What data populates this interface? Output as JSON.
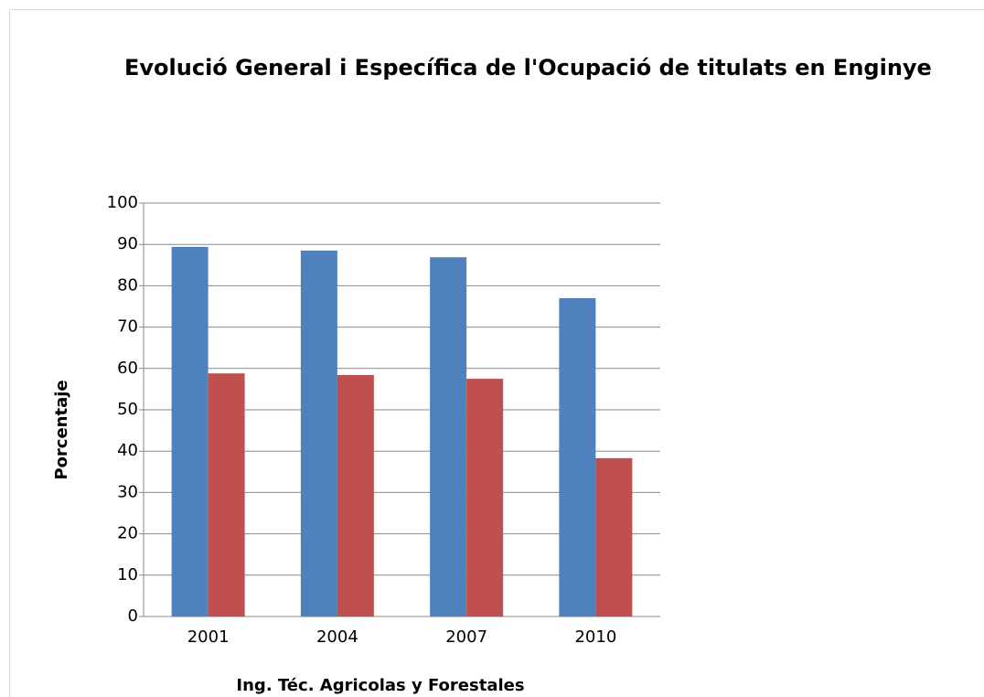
{
  "chart_data": {
    "type": "bar",
    "title": "Evolució General i Específica de l'Ocupació de titulats en Enginye",
    "x_label": "Ing. Téc. Agricolas y Forestales",
    "y_label": "Porcentaje",
    "categories": [
      "2001",
      "2004",
      "2007",
      "2010"
    ],
    "series": [
      {
        "color": "#4f81bd",
        "values": [
          89.4,
          88.5,
          86.9,
          77.0
        ]
      },
      {
        "color": "#c0504d",
        "values": [
          58.8,
          58.4,
          57.5,
          38.3
        ]
      }
    ],
    "ylim": [
      0,
      100
    ],
    "yticks": [
      0,
      10,
      20,
      30,
      40,
      50,
      60,
      70,
      80,
      90,
      100
    ],
    "grid": true
  }
}
